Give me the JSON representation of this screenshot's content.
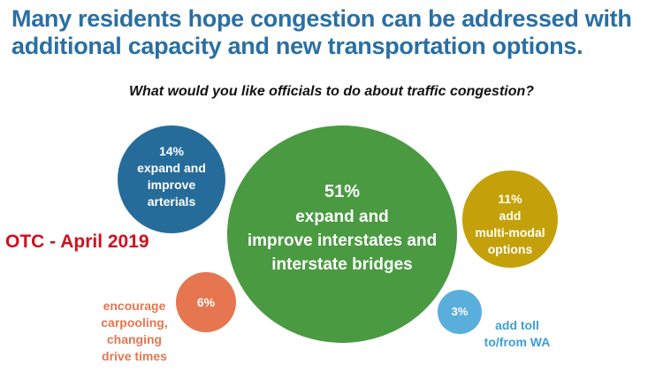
{
  "header": {
    "title_line1": "Many residents hope congestion can be addressed with",
    "title_line2": "additional capacity and new transportation options.",
    "question": "What would you like officials to do about traffic congestion?"
  },
  "source_note": "OTC - April 2019",
  "chart_data": {
    "type": "scatter",
    "title": "What would you like officials to do about traffic congestion?",
    "series": [
      {
        "name": "expand and improve interstates and interstate bridges",
        "value": 51,
        "label": "51%",
        "lines": [
          "expand and",
          "improve interstates and",
          "interstate bridges"
        ],
        "color": "#4a9a41",
        "text_color": "#ffffff",
        "label_inside": true
      },
      {
        "name": "expand and improve arterials",
        "value": 14,
        "label": "14%",
        "lines": [
          "expand and",
          "improve",
          "arterials"
        ],
        "color": "#266c9b",
        "text_color": "#ffffff",
        "label_inside": true
      },
      {
        "name": "add multi-modal options",
        "value": 11,
        "label": "11%",
        "lines": [
          "add",
          "multi-modal",
          "options"
        ],
        "color": "#c4a10a",
        "text_color": "#ffffff",
        "label_inside": true
      },
      {
        "name": "encourage carpooling, changing drive times",
        "value": 6,
        "label": "6%",
        "lines": [
          "encourage",
          "carpooling,",
          "changing",
          "drive times"
        ],
        "color": "#e57650",
        "text_color": "#e57650",
        "label_inside": false
      },
      {
        "name": "add toll to/from WA",
        "value": 3,
        "label": "3%",
        "lines": [
          "add toll",
          "to/from WA"
        ],
        "color": "#5aaedb",
        "text_color": "#3d9fd6",
        "label_inside": false
      }
    ]
  }
}
